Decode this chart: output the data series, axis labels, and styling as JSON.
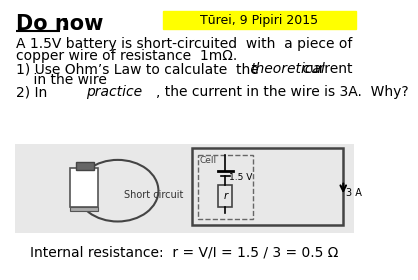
{
  "bg_color": "#ffffff",
  "header_bg": "#ffff00",
  "header_text": "Tūrei, 9 Pipiri 2015",
  "title_text": "Do now",
  "body_line1": "A 1.5V battery is short-circuited  with  a piece of",
  "body_line2": "copper wire of resistance  1mΩ.",
  "item1_pre": "1) Use Ohm’s Law to calculate  the ",
  "item1_italic": "theoretical",
  "item1_post": " current",
  "item1_line2": "    in the wire",
  "item2_pre": "2) In ",
  "item2_italic": "practice",
  "item2_post": ", the current in the wire is 3A.  Why?",
  "short_circuit_label": "Short circuit",
  "cell_label": "Cell",
  "voltage_label": "1.5 V",
  "current_label": "3 A",
  "r_label": "r",
  "footer": "Internal resistance:  r = V/I = 1.5 / 3 = 0.5 Ω",
  "img_gray": "#e8e8e8",
  "body_fs": 10,
  "header_fs": 9,
  "title_fs": 15
}
